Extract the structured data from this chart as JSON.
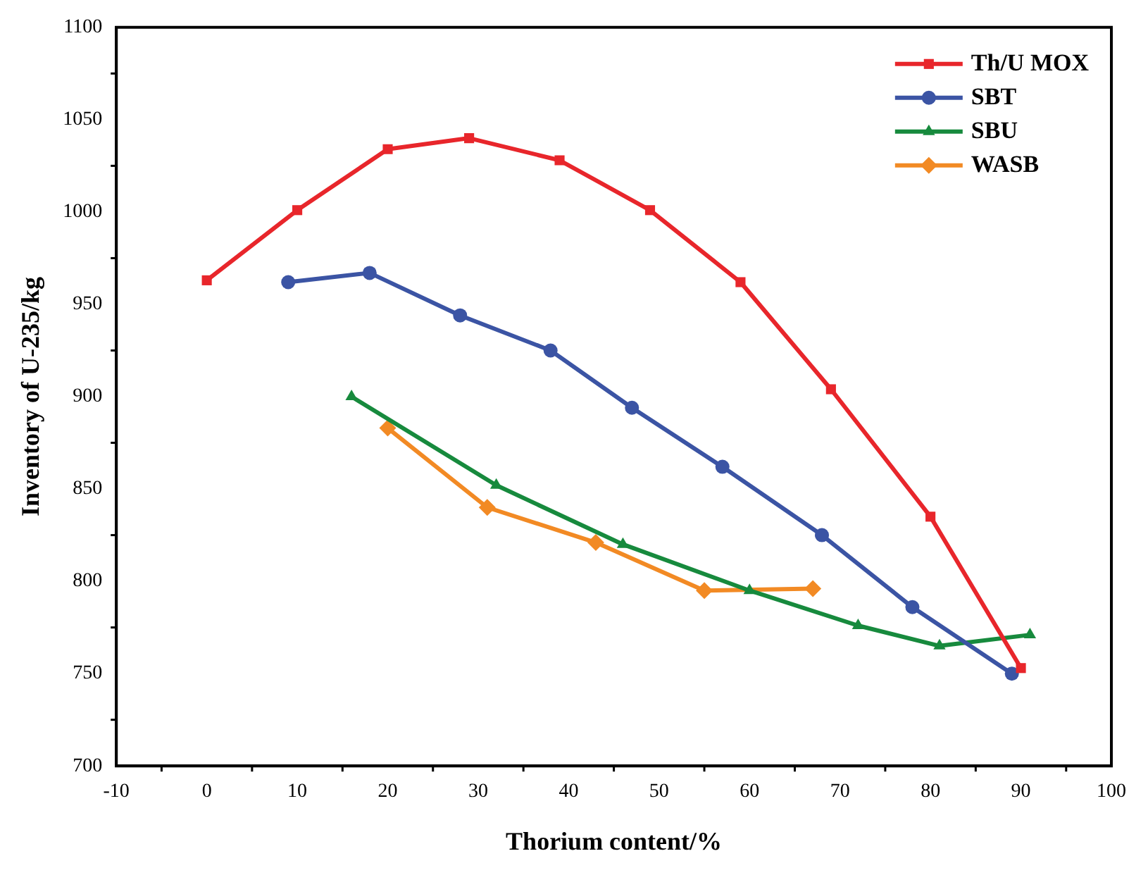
{
  "chart_data": {
    "type": "line",
    "xlabel": "Thorium content/%",
    "ylabel": "Inventory of U-235/kg",
    "xlim": [
      -10,
      100
    ],
    "xticks": [
      -10,
      0,
      10,
      20,
      30,
      40,
      50,
      60,
      70,
      80,
      90,
      100
    ],
    "ylim": [
      700,
      1100
    ],
    "yticks": [
      700,
      750,
      800,
      850,
      900,
      950,
      1000,
      1050,
      1100
    ],
    "grid": false,
    "legend": "top right",
    "line_style": "solid",
    "series": [
      {
        "name": "Th/U MOX",
        "color": "#e8262b",
        "marker": "square",
        "x": [
          0,
          10,
          20,
          29,
          39,
          49,
          59,
          69,
          80,
          90
        ],
        "values": [
          963,
          1001,
          1034,
          1040,
          1028,
          1001,
          962,
          904,
          835,
          753
        ]
      },
      {
        "name": "SBT",
        "color": "#3b54a4",
        "marker": "circle",
        "x": [
          9,
          18,
          28,
          38,
          47,
          57,
          68,
          78,
          89
        ],
        "values": [
          962,
          967,
          944,
          925,
          894,
          862,
          825,
          786,
          750
        ]
      },
      {
        "name": "SBU",
        "color": "#178a3d",
        "marker": "triangle",
        "x": [
          16,
          32,
          46,
          60,
          72,
          81,
          91
        ],
        "values": [
          900,
          852,
          820,
          795,
          776,
          765,
          771
        ]
      },
      {
        "name": "WASB",
        "color": "#f28a24",
        "marker": "diamond",
        "x": [
          20,
          31,
          43,
          55,
          67
        ],
        "values": [
          883,
          840,
          821,
          795,
          796
        ]
      }
    ]
  }
}
